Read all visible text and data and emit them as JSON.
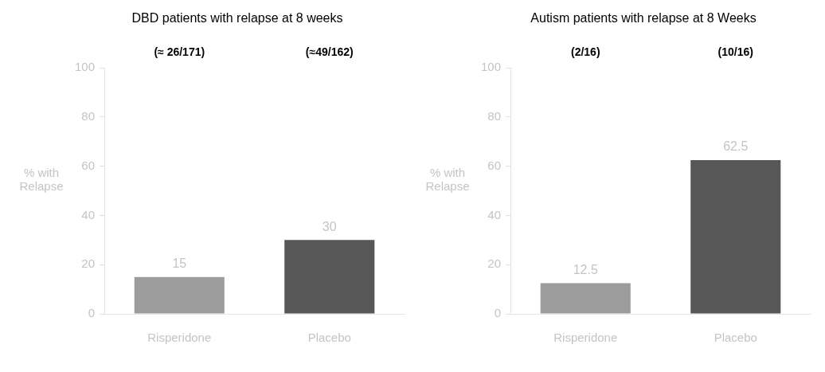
{
  "chart_data": [
    {
      "type": "bar",
      "title": "DBD patients with relapse at 8 weeks",
      "ylabel": "% with Relapse",
      "categories": [
        "Risperidone",
        "Placebo"
      ],
      "values": [
        15,
        30
      ],
      "colors": [
        "#9c9c9c",
        "#575757"
      ],
      "ylim": [
        0,
        100
      ],
      "yticks": [
        0,
        20,
        40,
        60,
        80,
        100
      ],
      "data_labels": true,
      "grid": false,
      "legend": false,
      "annotations": [
        "(≈ 26/171)",
        "(≈49/162)"
      ]
    },
    {
      "type": "bar",
      "title": "Autism patients with relapse at 8 Weeks",
      "ylabel": "% with Relapse",
      "categories": [
        "Risperidone",
        "Placebo"
      ],
      "values": [
        12.5,
        62.5
      ],
      "colors": [
        "#9c9c9c",
        "#575757"
      ],
      "ylim": [
        0,
        100
      ],
      "yticks": [
        0,
        20,
        40,
        60,
        80,
        100
      ],
      "data_labels": true,
      "grid": false,
      "legend": false,
      "annotations": [
        "(2/16)",
        "(10/16)"
      ]
    }
  ]
}
